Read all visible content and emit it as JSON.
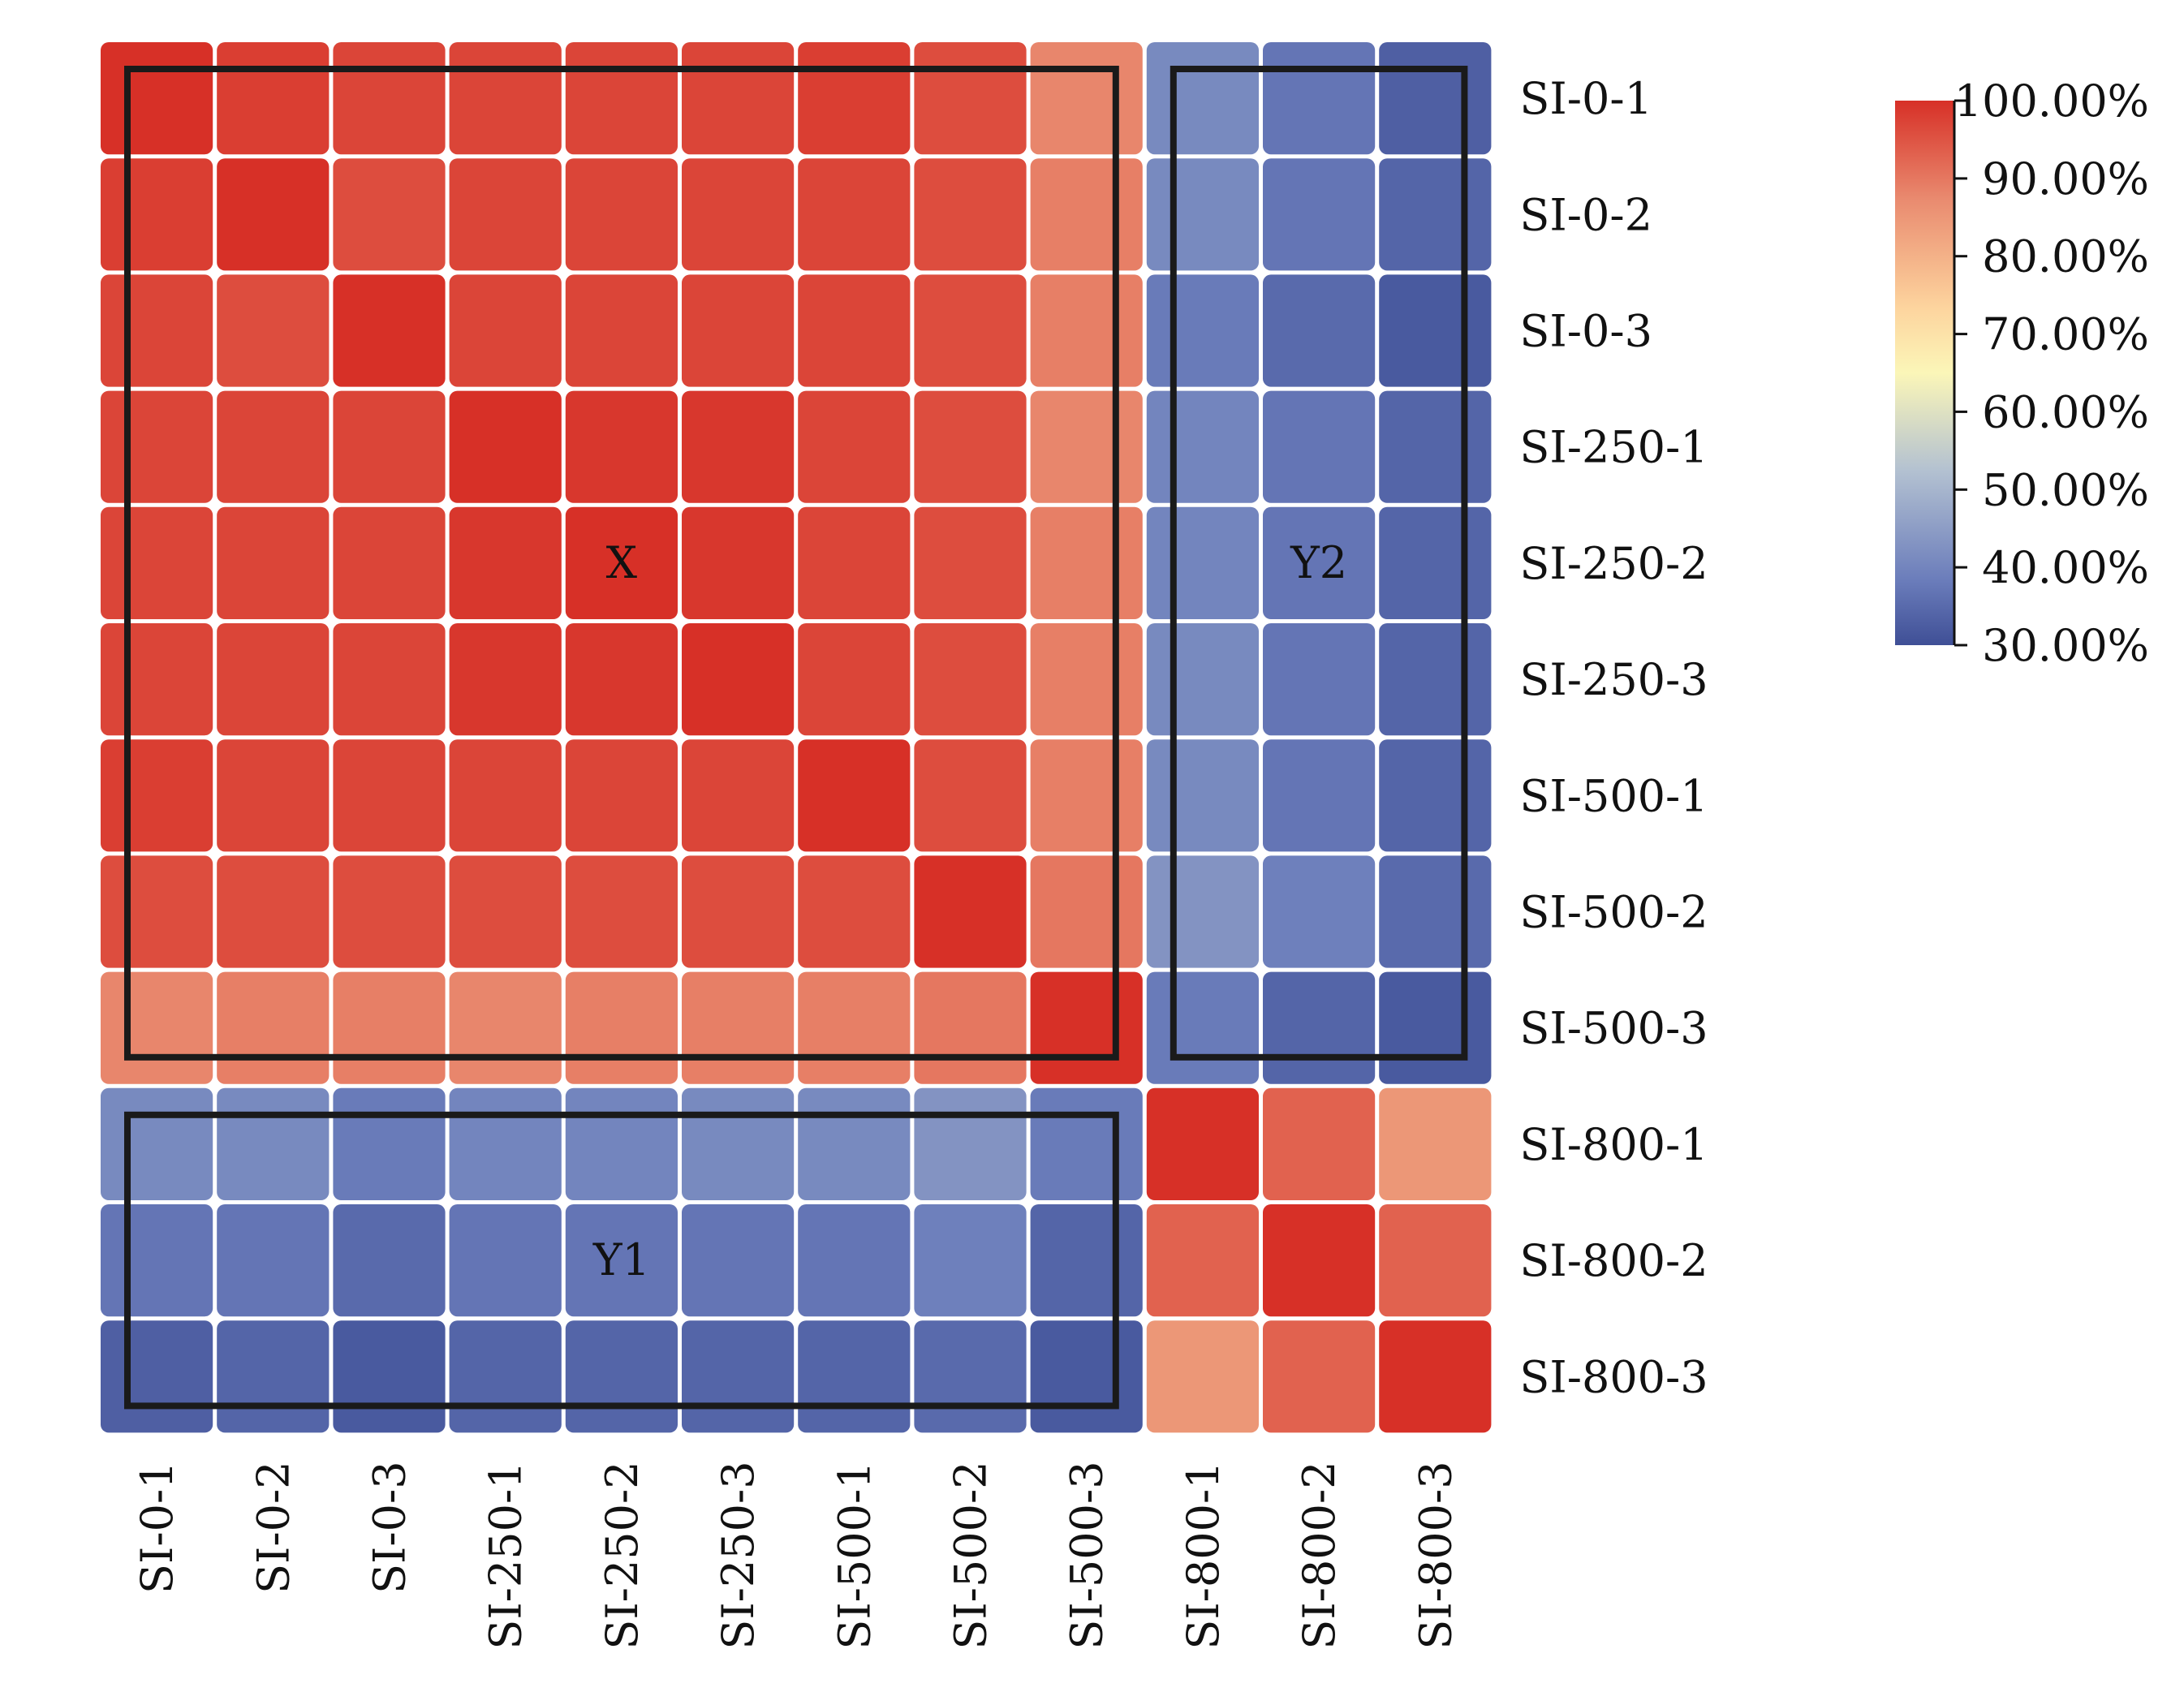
{
  "chart_data": {
    "type": "heatmap",
    "title": "",
    "xlabel": "",
    "ylabel": "",
    "x_categories": [
      "SI-0-1",
      "SI-0-2",
      "SI-0-3",
      "SI-250-1",
      "SI-250-2",
      "SI-250-3",
      "SI-500-1",
      "SI-500-2",
      "SI-500-3",
      "SI-800-1",
      "SI-800-2",
      "SI-800-3"
    ],
    "y_categories": [
      "SI-0-1",
      "SI-0-2",
      "SI-0-3",
      "SI-250-1",
      "SI-250-2",
      "SI-250-3",
      "SI-500-1",
      "SI-500-2",
      "SI-500-3",
      "SI-800-1",
      "SI-800-2",
      "SI-800-3"
    ],
    "values": [
      [
        100,
        98,
        97,
        97,
        97,
        97,
        98,
        96,
        88,
        41,
        37,
        33
      ],
      [
        98,
        100,
        96,
        97,
        97,
        97,
        97,
        96,
        89,
        41,
        37,
        34
      ],
      [
        97,
        96,
        100,
        97,
        97,
        97,
        97,
        96,
        89,
        38,
        35,
        32
      ],
      [
        97,
        97,
        97,
        100,
        99,
        99,
        97,
        96,
        88,
        40,
        37,
        34
      ],
      [
        97,
        97,
        97,
        99,
        100,
        99,
        97,
        96,
        89,
        40,
        37,
        34
      ],
      [
        97,
        97,
        97,
        99,
        99,
        100,
        97,
        96,
        89,
        41,
        37,
        34
      ],
      [
        98,
        97,
        97,
        97,
        97,
        97,
        100,
        96,
        89,
        41,
        37,
        34
      ],
      [
        96,
        96,
        96,
        96,
        96,
        96,
        96,
        100,
        90,
        43,
        39,
        35
      ],
      [
        88,
        89,
        89,
        88,
        89,
        89,
        89,
        90,
        100,
        38,
        34,
        32
      ],
      [
        41,
        41,
        38,
        40,
        40,
        41,
        41,
        43,
        38,
        100,
        93,
        85
      ],
      [
        37,
        37,
        35,
        37,
        37,
        37,
        37,
        39,
        34,
        93,
        100,
        93
      ],
      [
        33,
        34,
        32,
        34,
        34,
        34,
        34,
        35,
        32,
        85,
        93,
        100
      ]
    ],
    "colorbar": {
      "min": 30,
      "max": 100,
      "ticks": [
        {
          "value": 100,
          "label": "100.00%"
        },
        {
          "value": 90,
          "label": "90.00%"
        },
        {
          "value": 80,
          "label": "80.00%"
        },
        {
          "value": 70,
          "label": "70.00%"
        },
        {
          "value": 60,
          "label": "60.00%"
        },
        {
          "value": 50,
          "label": "50.00%"
        },
        {
          "value": 40,
          "label": "40.00%"
        },
        {
          "value": 30,
          "label": "30.00%"
        }
      ],
      "colors": {
        "high": "#d73027",
        "upper": "#e98a6f",
        "mid_high": "#fdd49e",
        "mid": "#fbf6b8",
        "mid_low": "#b3c1d1",
        "low": "#6b7dbb",
        "bottom": "#3f4f96"
      }
    },
    "annotations": [
      {
        "label": "X",
        "rows": [
          0,
          8
        ],
        "cols": [
          0,
          8
        ]
      },
      {
        "label": "Y2",
        "rows": [
          0,
          8
        ],
        "cols": [
          9,
          11
        ]
      },
      {
        "label": "Y1",
        "rows": [
          9,
          11
        ],
        "cols": [
          0,
          8
        ]
      }
    ],
    "legend": "right"
  }
}
